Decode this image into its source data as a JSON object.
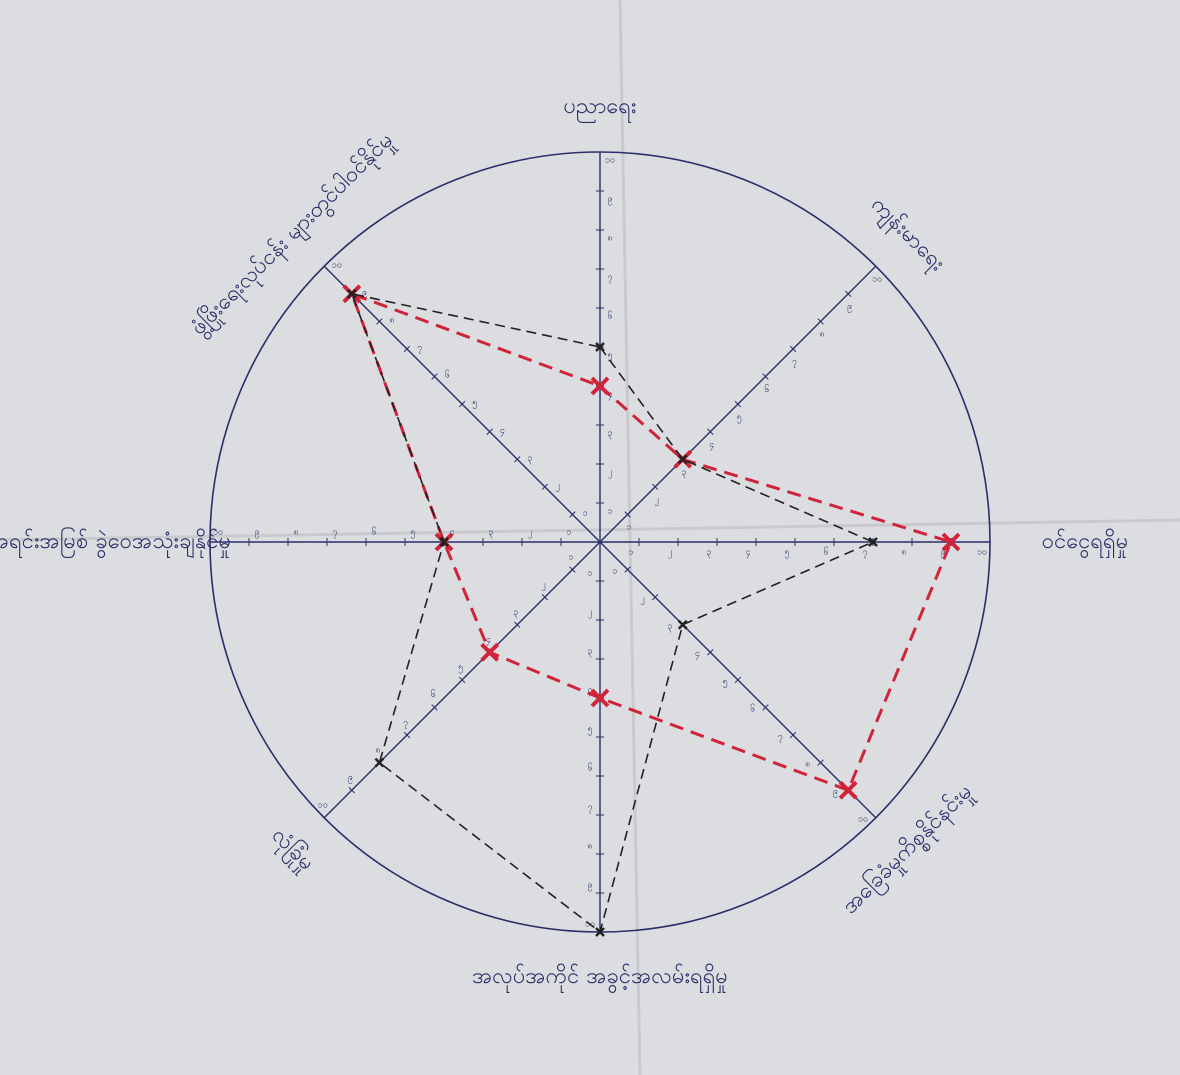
{
  "chart_data": {
    "type": "radar",
    "categories": [
      "ပညာရေး",
      "ကျန်းမာရေး",
      "ဝင်ငွေရရှိမှု",
      "အခြေခံမှုကိစ္စနိုင်နင်းမှု",
      "အလုပ်အကိုင် အခွင့်အလမ်းရရှိမှု",
      "လုံခြုံမှု",
      "အရင်းအမြစ် ခွဲဝေအသုံးချနိုင်မှု",
      "ဖွံ့ဖြိုးရေးလုပ်ငန်း များတွင်ပါဝင်နိုင်မှု"
    ],
    "rlim": [
      0,
      10
    ],
    "rticks": [
      {
        "value": 1,
        "label": "၁"
      },
      {
        "value": 2,
        "label": "၂"
      },
      {
        "value": 3,
        "label": "၃"
      },
      {
        "value": 4,
        "label": "၄"
      },
      {
        "value": 5,
        "label": "၅"
      },
      {
        "value": 6,
        "label": "၆"
      },
      {
        "value": 7,
        "label": "၇"
      },
      {
        "value": 8,
        "label": "၈"
      },
      {
        "value": 9,
        "label": "၉"
      },
      {
        "value": 10,
        "label": "၁၀"
      }
    ],
    "series": [
      {
        "color": "#d0243a",
        "values": [
          4,
          3,
          9,
          9,
          4,
          4,
          4,
          9
        ]
      },
      {
        "color": "#222222",
        "values": [
          5,
          3,
          7,
          3,
          10,
          8,
          4,
          9
        ]
      }
    ]
  }
}
